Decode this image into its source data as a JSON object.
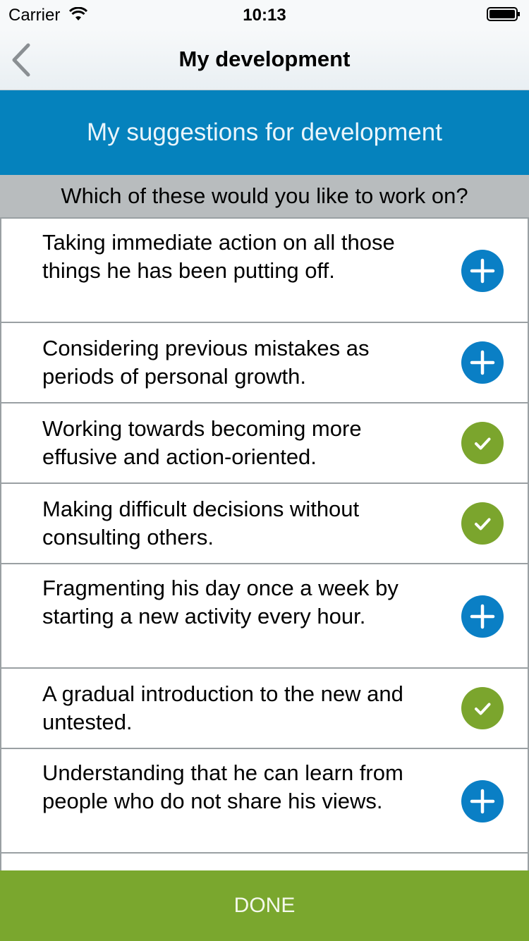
{
  "status_bar": {
    "carrier": "Carrier",
    "time": "10:13"
  },
  "nav": {
    "title": "My development"
  },
  "banner": {
    "title": "My suggestions for development"
  },
  "question": "Which of these would you like to work on?",
  "colors": {
    "primary_blue": "#0582bd",
    "add_button": "#0a7fc5",
    "selected_green": "#7ba52d",
    "done_bar": "#7aa72e",
    "question_bg": "#b8bcbe"
  },
  "items": [
    {
      "text": "Taking immediate action on all those things he has been putting off.",
      "state": "add",
      "icon": "plus-icon"
    },
    {
      "text": "Considering previous mistakes as periods of personal growth.",
      "state": "add",
      "icon": "plus-icon"
    },
    {
      "text": "Working towards becoming more effusive and action-oriented.",
      "state": "selected",
      "icon": "check-icon"
    },
    {
      "text": "Making difficult decisions without consulting others.",
      "state": "selected",
      "icon": "check-icon"
    },
    {
      "text": "Fragmenting his day once a week by starting a new activity every hour.",
      "state": "add",
      "icon": "plus-icon"
    },
    {
      "text": "A gradual introduction to the new and untested.",
      "state": "selected",
      "icon": "check-icon"
    },
    {
      "text": "Understanding that he can learn from people who do not share his views.",
      "state": "add",
      "icon": "plus-icon"
    }
  ],
  "footer": {
    "done_label": "DONE"
  }
}
